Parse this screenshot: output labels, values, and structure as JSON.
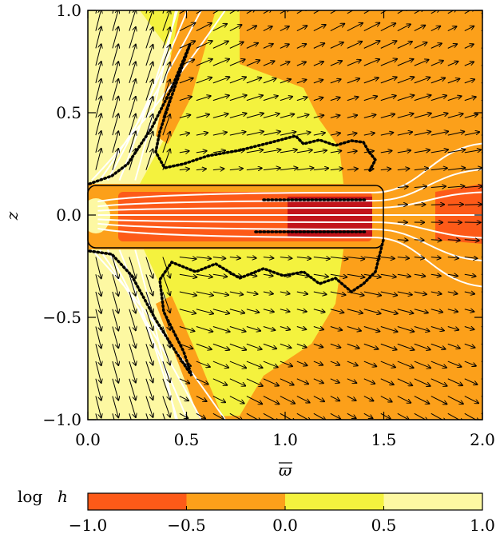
{
  "chart_data": {
    "type": "heatmap",
    "title": "",
    "xlabel": "ϖ",
    "ylabel": "z",
    "xlim": [
      0.0,
      2.0
    ],
    "ylim": [
      -1.0,
      1.0
    ],
    "x_ticks": [
      "0.0",
      "0.5",
      "1.0",
      "1.5",
      "2.0"
    ],
    "x_tick_values": [
      0.0,
      0.5,
      1.0,
      1.5,
      2.0
    ],
    "y_ticks": [
      "−1.0",
      "−0.5",
      "0.0",
      "0.5",
      "1.0"
    ],
    "y_tick_values": [
      -1.0,
      -0.5,
      0.0,
      0.5,
      1.0
    ],
    "grid": false,
    "colorbar": {
      "label": "log",
      "label_var": "h",
      "ticks": [
        "−1.0",
        "−0.5",
        "0.0",
        "0.5",
        "1.0"
      ],
      "tick_values": [
        -1.0,
        -0.5,
        0.0,
        0.5,
        1.0
      ],
      "bins": [
        {
          "from": -1.0,
          "to": -0.5,
          "color": "#fd5a18"
        },
        {
          "from": -0.5,
          "to": 0.0,
          "color": "#fca01a"
        },
        {
          "from": 0.0,
          "to": 0.5,
          "color": "#f4f23e"
        },
        {
          "from": 0.5,
          "to": 1.0,
          "color": "#fdf8a2"
        }
      ]
    },
    "disk": {
      "r_outer": 1.5,
      "half_thickness": 0.15
    },
    "overlays": [
      "velocity vectors",
      "poloidal field lines",
      "dotted contour"
    ]
  }
}
